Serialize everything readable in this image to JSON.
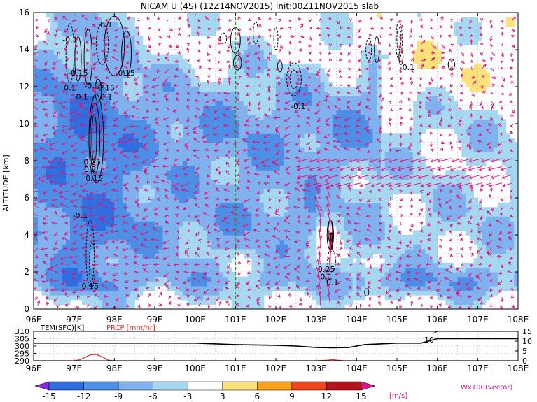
{
  "chart_data": [
    {
      "type": "heatmap",
      "title": "NICAM U (4S) (12Z14NOV2015) init:00Z11NOV2015 slab",
      "xlabel": "",
      "ylabel": "ALTITUDE [km]",
      "x_ticks": [
        "96E",
        "97E",
        "98E",
        "99E",
        "100E",
        "101E",
        "102E",
        "103E",
        "104E",
        "105E",
        "106E",
        "107E",
        "108E"
      ],
      "y_ticks": [
        "0",
        "2",
        "4",
        "6",
        "8",
        "10",
        "12",
        "14",
        "16"
      ],
      "xlim": [
        96,
        108
      ],
      "ylim": [
        0,
        16
      ],
      "grid": true,
      "reference_line_x": 101,
      "contour_labels": [
        "-0.1",
        "0.1",
        "-0.15",
        "0.15",
        "0.1",
        "-0.15",
        "0.15",
        "0.1",
        "0.1",
        "0.25",
        "0.2",
        "0.15",
        "-0.1",
        "0.15",
        "-0.1",
        "-0.1",
        "0.25",
        "0.1",
        "0.1"
      ],
      "colorbar": {
        "levels": [
          "-15",
          "-12",
          "-9",
          "-6",
          "-3",
          "3",
          "6",
          "9",
          "12",
          "15"
        ],
        "colors": [
          "#8a2be2",
          "#2f6ee0",
          "#4d8fe6",
          "#7fb2ee",
          "#a7d8f2",
          "#ffffff",
          "#fde27a",
          "#fba31f",
          "#f0461e",
          "#b5141e",
          "#e5148c"
        ],
        "unit": "[m/s]"
      },
      "vector_label": "Wx100(vector)",
      "vector_color": "#e3107a"
    },
    {
      "type": "line",
      "series": [
        {
          "name": "TEM(SFC)[K]",
          "color": "#000000",
          "x": [
            96,
            97,
            98,
            99,
            100,
            101,
            102,
            102.5,
            103,
            103.4,
            103.8,
            104.2,
            105,
            105.6,
            106,
            107,
            108
          ],
          "values": [
            302,
            302,
            302,
            302,
            302,
            301,
            300.5,
            300,
            299,
            298.8,
            299,
            301,
            302,
            302,
            305,
            305,
            305
          ]
        },
        {
          "name": "PRCP [mm/hr]",
          "color": "#e53030",
          "x": [
            96,
            97,
            97.15,
            97.4,
            97.55,
            97.7,
            97.85,
            98,
            103,
            103.3,
            103.4,
            103.5,
            103.7,
            108
          ],
          "values": [
            0,
            0,
            0.5,
            3,
            3.3,
            2,
            0.3,
            0,
            0,
            0.3,
            0.6,
            0.3,
            0,
            0
          ]
        }
      ],
      "y_left_ticks": [
        "310",
        "305",
        "300",
        "295",
        "290"
      ],
      "y_right_ticks": [
        "15",
        "10",
        "5",
        "0"
      ],
      "x_ticks": [
        "96E",
        "97E",
        "98E",
        "99E",
        "100E",
        "101E",
        "102E",
        "103E",
        "104E",
        "105E",
        "106E",
        "107E",
        "108E"
      ],
      "annotations": [
        "10"
      ],
      "xlim": [
        96,
        108
      ],
      "ylim_left": [
        290,
        310
      ],
      "ylim_right": [
        0,
        15
      ]
    }
  ]
}
